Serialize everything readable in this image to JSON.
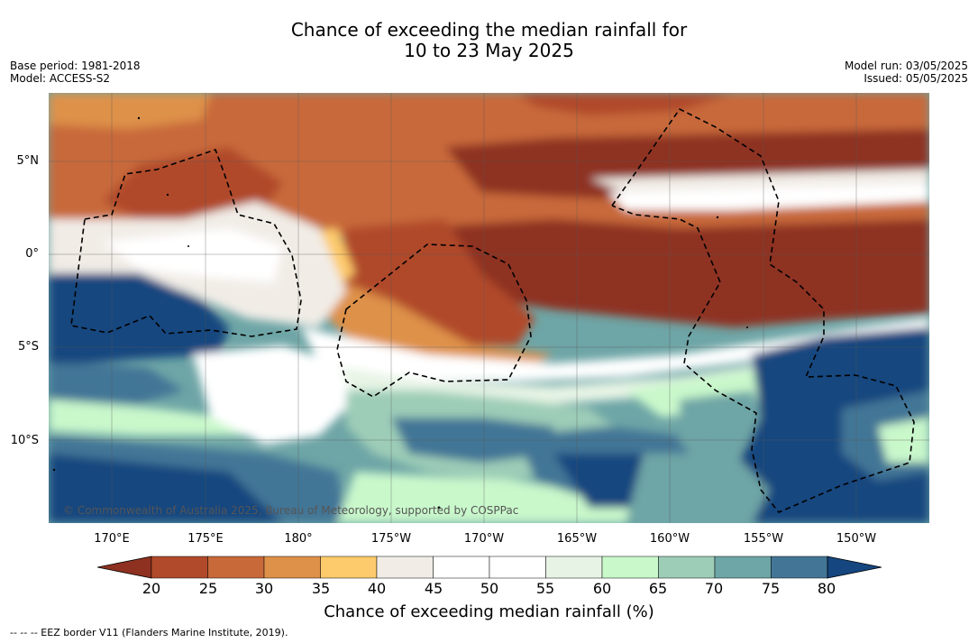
{
  "title_line1": "Chance of exceeding the median rainfall for",
  "title_line2": "10 to 23 May 2025",
  "base_period": "Base period: 1981-2018",
  "model": "Model: ACCESS-S2",
  "model_run": "Model run: 03/05/2025",
  "issued": "Issued: 05/05/2025",
  "lat_labels": [
    "5°N",
    "0°",
    "5°S",
    "10°S"
  ],
  "lon_labels": [
    "170°E",
    "175°E",
    "180°",
    "175°W",
    "170°W",
    "165°W",
    "160°W",
    "155°W",
    "150°W"
  ],
  "copyright": "© Commonwealth of Australia 2025, Bureau of Meteorology, supported by COSPPac",
  "colorbar": {
    "ticks": [
      "20",
      "25",
      "30",
      "35",
      "40",
      "45",
      "50",
      "55",
      "60",
      "65",
      "70",
      "75",
      "80"
    ],
    "colors": [
      "#8e3120",
      "#b04a2b",
      "#c8693a",
      "#de9148",
      "#fdca6c",
      "#f1ece6",
      "#ffffff",
      "#ffffff",
      "#e7f4e5",
      "#c9f8cb",
      "#9dcdb7",
      "#6ea5a6",
      "#437696",
      "#15467f"
    ],
    "label": "Chance of exceeding median rainfall (%)"
  },
  "footer": "--  --  -- EEZ border V11 (Flanders Marine Institute, 2019)."
}
